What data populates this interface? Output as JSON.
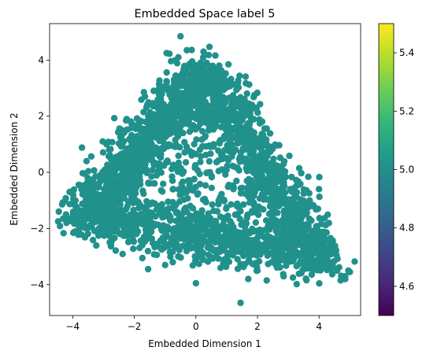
{
  "chart_data": {
    "type": "scatter",
    "title": "Embedded Space label 5",
    "xlabel": "Embedded Dimension 1",
    "ylabel": "Embedded Dimension 2",
    "xlim": [
      -4.75,
      5.35
    ],
    "ylim": [
      -5.1,
      5.3
    ],
    "xticks": [
      -4,
      -2,
      0,
      2,
      4
    ],
    "xtick_labels": [
      "−4",
      "−2",
      "0",
      "2",
      "4"
    ],
    "yticks": [
      -4,
      -2,
      0,
      2,
      4
    ],
    "ytick_labels": [
      "−4",
      "−2",
      "0",
      "2",
      "4"
    ],
    "grid": false,
    "point_color": "#21918c",
    "colorbar": {
      "colormap": "viridis",
      "range": [
        4.5,
        5.5
      ],
      "ticks": [
        4.6,
        4.8,
        5.0,
        5.2,
        5.4
      ],
      "tick_labels": [
        "4.6",
        "4.8",
        "5.0",
        "5.2",
        "5.4"
      ],
      "colors": [
        "#440154",
        "#482878",
        "#3e4989",
        "#31688e",
        "#26828e",
        "#1f9e89",
        "#35b779",
        "#6ece58",
        "#b5de2b",
        "#fde725"
      ]
    },
    "point_cloud": {
      "description_points": "dense triangular cloud, label value 5 for all points",
      "label_value": 5,
      "points": [
        [
          -0.5,
          4.85
        ],
        [
          0.25,
          4.3
        ],
        [
          -0.95,
          4.25
        ],
        [
          1.45,
          -4.65
        ],
        [
          0.0,
          -3.95
        ],
        [
          -4.45,
          -1.4
        ],
        [
          4.95,
          -3.5
        ],
        [
          5.0,
          -3.55
        ],
        [
          4.85,
          -3.7
        ],
        [
          4.7,
          -3.85
        ],
        [
          1.7,
          -3.8
        ],
        [
          2.3,
          -3.85
        ],
        [
          -1.55,
          -3.45
        ],
        [
          -3.55,
          0.4
        ],
        [
          -2.9,
          1.0
        ],
        [
          -2.45,
          1.4
        ],
        [
          -1.7,
          2.15
        ],
        [
          1.65,
          1.45
        ],
        [
          1.45,
          1.4
        ],
        [
          0.8,
          -3.4
        ],
        [
          -0.75,
          -3.2
        ],
        [
          3.15,
          -3.75
        ],
        [
          2.85,
          -3.7
        ],
        [
          -4.2,
          -1.8
        ],
        [
          -4.1,
          -0.7
        ],
        [
          -3.9,
          -2.1
        ],
        [
          -1.0,
          -3.3
        ],
        [
          2.0,
          -3.5
        ],
        [
          4.45,
          -3.35
        ],
        [
          -0.3,
          -2.8
        ]
      ]
    }
  }
}
